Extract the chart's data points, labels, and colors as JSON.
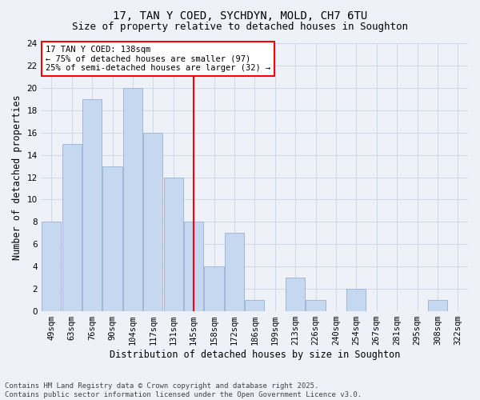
{
  "title": "17, TAN Y COED, SYCHDYN, MOLD, CH7 6TU",
  "subtitle": "Size of property relative to detached houses in Soughton",
  "xlabel": "Distribution of detached houses by size in Soughton",
  "ylabel": "Number of detached properties",
  "categories": [
    "49sqm",
    "63sqm",
    "76sqm",
    "90sqm",
    "104sqm",
    "117sqm",
    "131sqm",
    "145sqm",
    "158sqm",
    "172sqm",
    "186sqm",
    "199sqm",
    "213sqm",
    "226sqm",
    "240sqm",
    "254sqm",
    "267sqm",
    "281sqm",
    "295sqm",
    "308sqm",
    "322sqm"
  ],
  "values": [
    8,
    15,
    19,
    13,
    20,
    16,
    12,
    8,
    4,
    7,
    1,
    0,
    3,
    1,
    0,
    2,
    0,
    0,
    0,
    1,
    0
  ],
  "bar_color": "#c5d8f0",
  "bar_edgecolor": "#a0b8d8",
  "grid_color": "#d0d8e8",
  "background_color": "#eef2f8",
  "vline_index": 7,
  "vline_color": "red",
  "annotation_text": "17 TAN Y COED: 138sqm\n← 75% of detached houses are smaller (97)\n25% of semi-detached houses are larger (32) →",
  "annotation_box_color": "white",
  "annotation_box_edgecolor": "red",
  "ylim": [
    0,
    24
  ],
  "yticks": [
    0,
    2,
    4,
    6,
    8,
    10,
    12,
    14,
    16,
    18,
    20,
    22,
    24
  ],
  "footnote": "Contains HM Land Registry data © Crown copyright and database right 2025.\nContains public sector information licensed under the Open Government Licence v3.0.",
  "title_fontsize": 10,
  "subtitle_fontsize": 9,
  "xlabel_fontsize": 8.5,
  "ylabel_fontsize": 8.5,
  "tick_fontsize": 7.5,
  "annotation_fontsize": 7.5,
  "footnote_fontsize": 6.5
}
